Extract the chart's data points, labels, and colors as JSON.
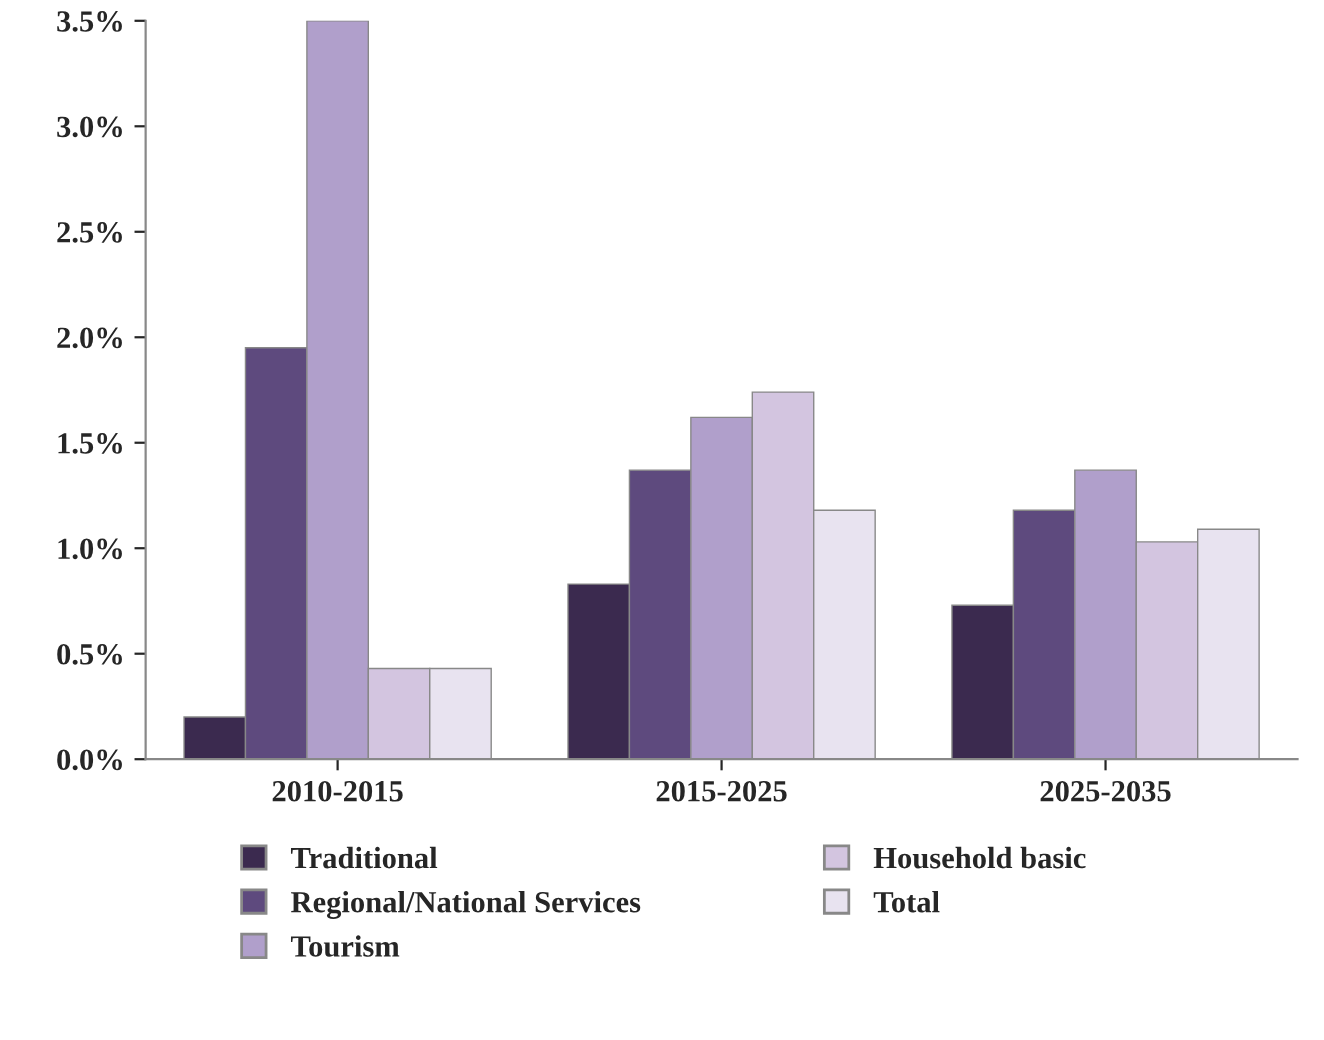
{
  "chart_data": {
    "type": "bar",
    "categories": [
      "2010-2015",
      "2015-2025",
      "2025-2035"
    ],
    "series": [
      {
        "name": "Traditional",
        "color": "#3b2a4f",
        "values": [
          0.2,
          0.83,
          0.73
        ]
      },
      {
        "name": "Regional/National Services",
        "color": "#5e4a7e",
        "values": [
          1.95,
          1.37,
          1.18
        ]
      },
      {
        "name": "Tourism",
        "color": "#b09fcb",
        "values": [
          3.5,
          1.62,
          1.37
        ]
      },
      {
        "name": "Household basic",
        "color": "#d3c5e0",
        "values": [
          0.43,
          1.74,
          1.03
        ]
      },
      {
        "name": "Total",
        "color": "#e8e3f0",
        "values": [
          0.43,
          1.18,
          1.09
        ]
      }
    ],
    "ylim": [
      0,
      3.5
    ],
    "yticks": [
      {
        "value": 0,
        "label": "0.0%"
      },
      {
        "value": 0.5,
        "label": "0.5%"
      },
      {
        "value": 1,
        "label": "1.0%"
      },
      {
        "value": 1.5,
        "label": "1.5%"
      },
      {
        "value": 2,
        "label": "2.0%"
      },
      {
        "value": 2.5,
        "label": "2.5%"
      },
      {
        "value": 3,
        "label": "3.0%"
      },
      {
        "value": 3.5,
        "label": "3.5%"
      }
    ],
    "grid": false,
    "legend": "bottom"
  }
}
